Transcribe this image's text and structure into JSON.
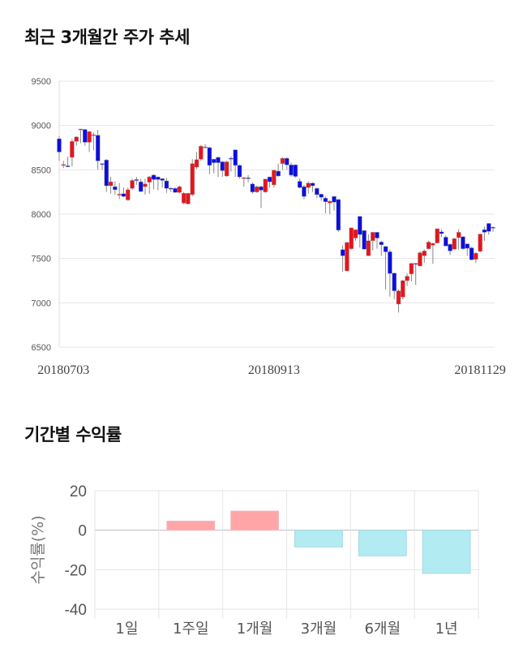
{
  "titles": {
    "price_trend": "최근 3개월간 주가 추세",
    "period_return": "기간별 수익률"
  },
  "colors": {
    "up": "#e8141b",
    "down": "#0b0ee0",
    "wick": "#888888",
    "positive_bar": "#ffa5a8",
    "negative_bar": "#b2ebf2",
    "grid": "#e6e6e6"
  },
  "chart_data": [
    {
      "type": "candlestick",
      "title": "최근 3개월간 주가 추세",
      "ylim": [
        6500,
        9500
      ],
      "yticks": [
        "9500",
        "9000",
        "8500",
        "8000",
        "7500",
        "7000",
        "6500"
      ],
      "xticks": [
        {
          "label": "20180703",
          "index": 1
        },
        {
          "label": "20180913",
          "index": 50
        },
        {
          "label": "20181129",
          "index": 98
        }
      ],
      "grid": true,
      "ohlc": [
        [
          8850,
          8880,
          8600,
          8700
        ],
        [
          8550,
          8600,
          8520,
          8560
        ],
        [
          8545,
          8650,
          8530,
          8535
        ],
        [
          8640,
          8850,
          8540,
          8820
        ],
        [
          8820,
          8880,
          8770,
          8870
        ],
        [
          8950,
          8960,
          8800,
          8960
        ],
        [
          8955,
          8960,
          8770,
          8810
        ],
        [
          8810,
          8940,
          8700,
          8930
        ],
        [
          8885,
          8920,
          8720,
          8895
        ],
        [
          8890,
          8950,
          8500,
          8600
        ],
        [
          8570,
          8580,
          8500,
          8560
        ],
        [
          8610,
          8620,
          8250,
          8320
        ],
        [
          8320,
          8420,
          8230,
          8365
        ],
        [
          8310,
          8370,
          8220,
          8275
        ],
        [
          8215,
          8350,
          8170,
          8225
        ],
        [
          8230,
          8300,
          8190,
          8200
        ],
        [
          8160,
          8300,
          8150,
          8275
        ],
        [
          8290,
          8400,
          8270,
          8380
        ],
        [
          8390,
          8420,
          8330,
          8380
        ],
        [
          8365,
          8400,
          8250,
          8255
        ],
        [
          8310,
          8400,
          8220,
          8340
        ],
        [
          8360,
          8430,
          8230,
          8420
        ],
        [
          8440,
          8450,
          8280,
          8390
        ],
        [
          8420,
          8420,
          8270,
          8390
        ],
        [
          8400,
          8400,
          8300,
          8380
        ],
        [
          8375,
          8410,
          8240,
          8290
        ],
        [
          8292,
          8300,
          8250,
          8288
        ],
        [
          8290,
          8300,
          8240,
          8245
        ],
        [
          8245,
          8320,
          8230,
          8310
        ],
        [
          8125,
          8250,
          8110,
          8235
        ],
        [
          8115,
          8240,
          8110,
          8235
        ],
        [
          8220,
          8620,
          8200,
          8570
        ],
        [
          8530,
          8700,
          8510,
          8615
        ],
        [
          8620,
          8780,
          8600,
          8765
        ],
        [
          8752,
          8790,
          8740,
          8758
        ],
        [
          8750,
          8760,
          8450,
          8550
        ],
        [
          8620,
          8620,
          8460,
          8580
        ],
        [
          8640,
          8650,
          8420,
          8580
        ],
        [
          8590,
          8600,
          8420,
          8490
        ],
        [
          8430,
          8600,
          8420,
          8590
        ],
        [
          8630,
          8650,
          8480,
          8620
        ],
        [
          8725,
          8730,
          8420,
          8550
        ],
        [
          8550,
          8560,
          8400,
          8420
        ],
        [
          8405,
          8420,
          8310,
          8410
        ],
        [
          8410,
          8440,
          8360,
          8400
        ],
        [
          8340,
          8360,
          8230,
          8250
        ],
        [
          8250,
          8320,
          8240,
          8310
        ],
        [
          8310,
          8320,
          8070,
          8270
        ],
        [
          8250,
          8400,
          8240,
          8395
        ],
        [
          8420,
          8420,
          8300,
          8365
        ],
        [
          8330,
          8500,
          8300,
          8495
        ],
        [
          8485,
          8570,
          8420,
          8430
        ],
        [
          8570,
          8640,
          8500,
          8630
        ],
        [
          8630,
          8640,
          8500,
          8555
        ],
        [
          8555,
          8580,
          8420,
          8440
        ],
        [
          8555,
          8560,
          8410,
          8425
        ],
        [
          8370,
          8400,
          8290,
          8300
        ],
        [
          8310,
          8330,
          8170,
          8200
        ],
        [
          8300,
          8370,
          8230,
          8350
        ],
        [
          8350,
          8360,
          8250,
          8320
        ],
        [
          8290,
          8300,
          8180,
          8220
        ],
        [
          8225,
          8230,
          8150,
          8190
        ],
        [
          8180,
          8200,
          8010,
          8140
        ],
        [
          8125,
          8160,
          8000,
          8145
        ],
        [
          8200,
          8200,
          8040,
          8135
        ],
        [
          8165,
          8170,
          7800,
          7820
        ],
        [
          7600,
          7650,
          7350,
          7530
        ],
        [
          7360,
          7690,
          7360,
          7680
        ],
        [
          7610,
          7850,
          7600,
          7845
        ],
        [
          7730,
          7830,
          7700,
          7825
        ],
        [
          7975,
          7980,
          7620,
          7770
        ],
        [
          7815,
          7820,
          7600,
          7605
        ],
        [
          7530,
          7770,
          7530,
          7700
        ],
        [
          7700,
          7800,
          7590,
          7795
        ],
        [
          7795,
          7800,
          7610,
          7730
        ],
        [
          7685,
          7700,
          7530,
          7655
        ],
        [
          7635,
          7640,
          7150,
          7575
        ],
        [
          7575,
          7600,
          7070,
          7330
        ],
        [
          7335,
          7340,
          7040,
          7135
        ],
        [
          6985,
          7150,
          6890,
          7135
        ],
        [
          7065,
          7260,
          7040,
          7250
        ],
        [
          7250,
          7330,
          7190,
          7300
        ],
        [
          7325,
          7450,
          7240,
          7445
        ],
        [
          7445,
          7450,
          7200,
          7435
        ],
        [
          7415,
          7580,
          7410,
          7565
        ],
        [
          7530,
          7600,
          7450,
          7585
        ],
        [
          7610,
          7700,
          7600,
          7685
        ],
        [
          7650,
          7680,
          7440,
          7670
        ],
        [
          7675,
          7840,
          7670,
          7835
        ],
        [
          7800,
          7830,
          7740,
          7780
        ],
        [
          7740,
          7760,
          7640,
          7640
        ],
        [
          7660,
          7670,
          7540,
          7585
        ],
        [
          7605,
          7730,
          7600,
          7725
        ],
        [
          7735,
          7830,
          7600,
          7795
        ],
        [
          7745,
          7750,
          7600,
          7610
        ],
        [
          7665,
          7670,
          7530,
          7615
        ],
        [
          7620,
          7630,
          7480,
          7485
        ],
        [
          7490,
          7570,
          7450,
          7560
        ],
        [
          7580,
          7780,
          7570,
          7775
        ],
        [
          7825,
          7860,
          7700,
          7795
        ],
        [
          7895,
          7900,
          7770,
          7805
        ],
        [
          7852,
          7860,
          7800,
          7848
        ]
      ]
    },
    {
      "type": "bar",
      "title": "기간별 수익률",
      "ylabel": "수익률(%)",
      "ylim": [
        -40,
        20
      ],
      "yticks": [
        "20",
        "0",
        "-20",
        "-40"
      ],
      "categories": [
        "1일",
        "1주일",
        "1개월",
        "3개월",
        "6개월",
        "1년"
      ],
      "values": [
        0,
        4.6,
        9.7,
        -8.5,
        -13.0,
        -21.9
      ],
      "grid": true
    }
  ]
}
